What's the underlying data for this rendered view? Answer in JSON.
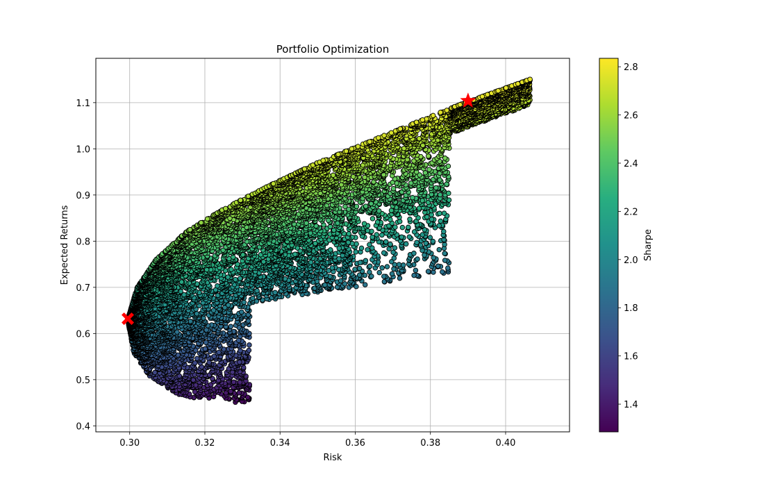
{
  "chart_data": {
    "type": "scatter",
    "title": "Portfolio Optimization",
    "xlabel": "Risk",
    "ylabel": "Expected Returns",
    "xlim": [
      0.291,
      0.417
    ],
    "ylim": [
      0.387,
      1.196
    ],
    "xticks": [
      0.3,
      0.32,
      0.34,
      0.36,
      0.38,
      0.4
    ],
    "xtick_labels": [
      "0.30",
      "0.32",
      "0.34",
      "0.36",
      "0.38",
      "0.40"
    ],
    "yticks": [
      0.4,
      0.5,
      0.6,
      0.7,
      0.8,
      0.9,
      1.0,
      1.1
    ],
    "ytick_labels": [
      "0.4",
      "0.5",
      "0.6",
      "0.7",
      "0.8",
      "0.9",
      "1.0",
      "1.1"
    ],
    "grid": true,
    "colormap": "viridis",
    "colorbar": {
      "label": "Sharpe",
      "range": [
        1.285,
        2.835
      ],
      "ticks": [
        1.4,
        1.6,
        1.8,
        2.0,
        2.2,
        2.4,
        2.6,
        2.8
      ],
      "tick_labels": [
        "1.4",
        "1.6",
        "1.8",
        "2.0",
        "2.2",
        "2.4",
        "2.6",
        "2.8"
      ]
    },
    "num_portfolios_approx": 10000,
    "upper_frontier": [
      {
        "risk": 0.2995,
        "return": 0.63
      },
      {
        "risk": 0.302,
        "return": 0.7
      },
      {
        "risk": 0.307,
        "return": 0.76
      },
      {
        "risk": 0.315,
        "return": 0.82
      },
      {
        "risk": 0.325,
        "return": 0.87
      },
      {
        "risk": 0.337,
        "return": 0.92
      },
      {
        "risk": 0.35,
        "return": 0.97
      },
      {
        "risk": 0.362,
        "return": 1.01
      },
      {
        "risk": 0.374,
        "return": 1.05
      },
      {
        "risk": 0.386,
        "return": 1.09
      },
      {
        "risk": 0.396,
        "return": 1.12
      },
      {
        "risk": 0.408,
        "return": 1.155
      }
    ],
    "lower_frontier": [
      {
        "risk": 0.2995,
        "return": 0.63
      },
      {
        "risk": 0.301,
        "return": 0.56
      },
      {
        "risk": 0.305,
        "return": 0.51
      },
      {
        "risk": 0.312,
        "return": 0.47
      },
      {
        "risk": 0.32,
        "return": 0.455
      },
      {
        "risk": 0.326,
        "return": 0.44
      },
      {
        "risk": 0.332,
        "return": 0.428
      }
    ],
    "special_points": [
      {
        "name": "max-sharpe",
        "marker": "star",
        "risk": 0.39,
        "return": 1.104,
        "color": "#ff0000"
      },
      {
        "name": "min-volatility",
        "marker": "x",
        "risk": 0.2995,
        "return": 0.632,
        "color": "#ff0000"
      }
    ]
  }
}
